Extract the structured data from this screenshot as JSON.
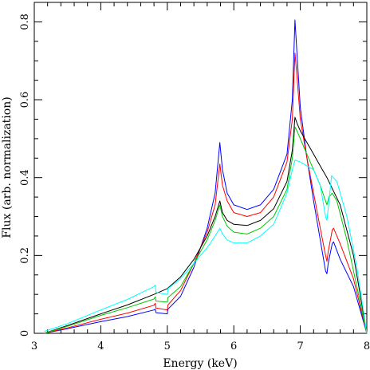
{
  "chart_data": {
    "type": "line",
    "title": "",
    "xlabel": "Energy (keV)",
    "ylabel": "Flux (arb. normalization)",
    "xlim": [
      3,
      8
    ],
    "ylim": [
      0,
      0.85
    ],
    "xticks": [
      3,
      4,
      5,
      6,
      7,
      8
    ],
    "yticks": [
      0,
      0.2,
      0.4,
      0.6,
      0.8
    ],
    "grid": false,
    "legend": "none",
    "series": [
      {
        "color": "#0000ff",
        "points": [
          [
            3.15,
            0.0
          ],
          [
            3.5,
            0.012
          ],
          [
            4.0,
            0.03
          ],
          [
            4.4,
            0.043
          ],
          [
            4.8,
            0.06
          ],
          [
            4.82,
            0.062
          ],
          [
            4.83,
            0.053
          ],
          [
            5.0,
            0.05
          ],
          [
            5.01,
            0.062
          ],
          [
            5.2,
            0.095
          ],
          [
            5.4,
            0.17
          ],
          [
            5.6,
            0.27
          ],
          [
            5.72,
            0.36
          ],
          [
            5.79,
            0.49
          ],
          [
            5.83,
            0.42
          ],
          [
            5.9,
            0.36
          ],
          [
            6.0,
            0.33
          ],
          [
            6.2,
            0.318
          ],
          [
            6.4,
            0.33
          ],
          [
            6.6,
            0.37
          ],
          [
            6.8,
            0.46
          ],
          [
            6.88,
            0.6
          ],
          [
            6.92,
            0.805
          ],
          [
            6.95,
            0.72
          ],
          [
            7.0,
            0.58
          ],
          [
            7.1,
            0.45
          ],
          [
            7.2,
            0.34
          ],
          [
            7.3,
            0.24
          ],
          [
            7.38,
            0.16
          ],
          [
            7.4,
            0.153
          ],
          [
            7.42,
            0.18
          ],
          [
            7.48,
            0.23
          ],
          [
            7.5,
            0.235
          ],
          [
            7.6,
            0.19
          ],
          [
            7.8,
            0.12
          ],
          [
            8.0,
            0.0
          ]
        ]
      },
      {
        "color": "#ff0000",
        "points": [
          [
            3.15,
            0.0
          ],
          [
            3.5,
            0.014
          ],
          [
            4.0,
            0.036
          ],
          [
            4.4,
            0.052
          ],
          [
            4.8,
            0.072
          ],
          [
            4.82,
            0.077
          ],
          [
            4.83,
            0.065
          ],
          [
            5.0,
            0.06
          ],
          [
            5.01,
            0.073
          ],
          [
            5.2,
            0.11
          ],
          [
            5.4,
            0.18
          ],
          [
            5.6,
            0.26
          ],
          [
            5.72,
            0.33
          ],
          [
            5.79,
            0.435
          ],
          [
            5.83,
            0.38
          ],
          [
            5.9,
            0.34
          ],
          [
            6.0,
            0.31
          ],
          [
            6.2,
            0.3
          ],
          [
            6.4,
            0.31
          ],
          [
            6.6,
            0.35
          ],
          [
            6.8,
            0.44
          ],
          [
            6.88,
            0.55
          ],
          [
            6.92,
            0.72
          ],
          [
            6.95,
            0.66
          ],
          [
            7.0,
            0.55
          ],
          [
            7.1,
            0.45
          ],
          [
            7.2,
            0.36
          ],
          [
            7.3,
            0.27
          ],
          [
            7.38,
            0.2
          ],
          [
            7.4,
            0.185
          ],
          [
            7.42,
            0.21
          ],
          [
            7.48,
            0.265
          ],
          [
            7.5,
            0.27
          ],
          [
            7.6,
            0.23
          ],
          [
            7.8,
            0.14
          ],
          [
            8.0,
            0.0
          ]
        ]
      },
      {
        "color": "#000000",
        "points": [
          [
            3.15,
            0.0
          ],
          [
            3.5,
            0.02
          ],
          [
            4.0,
            0.05
          ],
          [
            4.4,
            0.073
          ],
          [
            4.8,
            0.1
          ],
          [
            5.0,
            0.115
          ],
          [
            5.2,
            0.145
          ],
          [
            5.4,
            0.19
          ],
          [
            5.6,
            0.25
          ],
          [
            5.72,
            0.3
          ],
          [
            5.79,
            0.34
          ],
          [
            5.83,
            0.31
          ],
          [
            5.9,
            0.29
          ],
          [
            6.0,
            0.28
          ],
          [
            6.2,
            0.277
          ],
          [
            6.4,
            0.29
          ],
          [
            6.6,
            0.32
          ],
          [
            6.8,
            0.39
          ],
          [
            6.88,
            0.47
          ],
          [
            6.92,
            0.555
          ],
          [
            6.95,
            0.54
          ],
          [
            7.0,
            0.52
          ],
          [
            7.1,
            0.49
          ],
          [
            7.2,
            0.46
          ],
          [
            7.3,
            0.43
          ],
          [
            7.4,
            0.4
          ],
          [
            7.6,
            0.33
          ],
          [
            7.8,
            0.2
          ],
          [
            8.0,
            0.0
          ]
        ]
      },
      {
        "color": "#00c800",
        "points": [
          [
            3.15,
            0.0
          ],
          [
            3.5,
            0.018
          ],
          [
            4.0,
            0.046
          ],
          [
            4.4,
            0.066
          ],
          [
            4.8,
            0.088
          ],
          [
            4.82,
            0.094
          ],
          [
            4.83,
            0.083
          ],
          [
            5.0,
            0.08
          ],
          [
            5.01,
            0.092
          ],
          [
            5.2,
            0.12
          ],
          [
            5.4,
            0.18
          ],
          [
            5.6,
            0.24
          ],
          [
            5.72,
            0.29
          ],
          [
            5.79,
            0.33
          ],
          [
            5.83,
            0.3
          ],
          [
            5.9,
            0.275
          ],
          [
            6.0,
            0.26
          ],
          [
            6.2,
            0.255
          ],
          [
            6.4,
            0.27
          ],
          [
            6.6,
            0.3
          ],
          [
            6.8,
            0.37
          ],
          [
            6.88,
            0.45
          ],
          [
            6.92,
            0.53
          ],
          [
            6.95,
            0.52
          ],
          [
            7.0,
            0.5
          ],
          [
            7.1,
            0.46
          ],
          [
            7.2,
            0.42
          ],
          [
            7.3,
            0.38
          ],
          [
            7.38,
            0.34
          ],
          [
            7.4,
            0.33
          ],
          [
            7.43,
            0.35
          ],
          [
            7.48,
            0.36
          ],
          [
            7.55,
            0.34
          ],
          [
            7.7,
            0.24
          ],
          [
            7.85,
            0.12
          ],
          [
            8.0,
            0.0
          ]
        ]
      },
      {
        "color": "#00ffff",
        "points": [
          [
            3.15,
            0.005
          ],
          [
            3.5,
            0.025
          ],
          [
            4.0,
            0.06
          ],
          [
            4.4,
            0.087
          ],
          [
            4.8,
            0.12
          ],
          [
            4.82,
            0.124
          ],
          [
            4.83,
            0.105
          ],
          [
            5.0,
            0.1
          ],
          [
            5.01,
            0.115
          ],
          [
            5.2,
            0.14
          ],
          [
            5.4,
            0.18
          ],
          [
            5.6,
            0.22
          ],
          [
            5.72,
            0.25
          ],
          [
            5.79,
            0.27
          ],
          [
            5.83,
            0.255
          ],
          [
            5.9,
            0.24
          ],
          [
            6.0,
            0.232
          ],
          [
            6.2,
            0.232
          ],
          [
            6.4,
            0.25
          ],
          [
            6.6,
            0.28
          ],
          [
            6.8,
            0.36
          ],
          [
            6.88,
            0.42
          ],
          [
            6.92,
            0.445
          ],
          [
            7.0,
            0.44
          ],
          [
            7.1,
            0.43
          ],
          [
            7.2,
            0.42
          ],
          [
            7.3,
            0.38
          ],
          [
            7.38,
            0.3
          ],
          [
            7.4,
            0.29
          ],
          [
            7.42,
            0.32
          ],
          [
            7.47,
            0.405
          ],
          [
            7.55,
            0.39
          ],
          [
            7.7,
            0.3
          ],
          [
            7.85,
            0.17
          ],
          [
            8.0,
            0.0
          ]
        ]
      }
    ]
  }
}
